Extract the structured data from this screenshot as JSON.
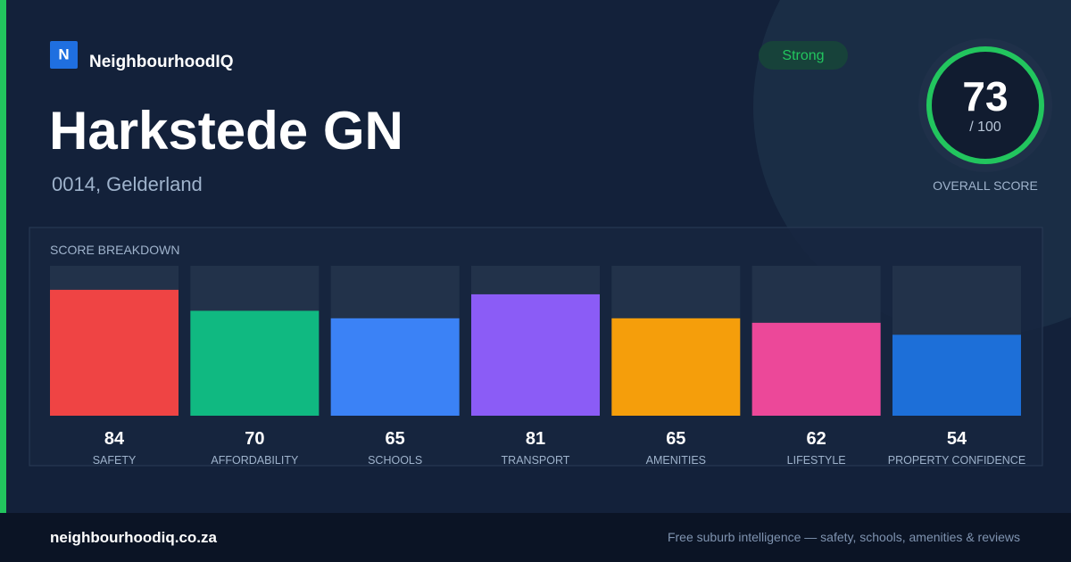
{
  "brand": {
    "logo": "N",
    "name": "NeighbourhoodIQ"
  },
  "title": "Harkstede GN",
  "location": "0014, Gelderland",
  "badge": "Strong",
  "score": {
    "value": 73,
    "out_of": {
      "value": 100,
      "label": "/ 100"
    },
    "label": "OVERALL SCORE"
  },
  "breakdown": {
    "title": "SCORE BREAKDOWN",
    "items": [
      {
        "label": "SAFETY",
        "value": 84,
        "color": "#ef4444"
      },
      {
        "label": "AFFORDABILITY",
        "value": 70,
        "color": "#10b981"
      },
      {
        "label": "SCHOOLS",
        "value": 65,
        "color": "#3b82f6"
      },
      {
        "label": "TRANSPORT",
        "value": 81,
        "color": "#8b5cf6"
      },
      {
        "label": "AMENITIES",
        "value": 65,
        "color": "#f59e0b"
      },
      {
        "label": "LIFESTYLE",
        "value": 62,
        "color": "#ec4899"
      },
      {
        "label": "PROPERTY CONFIDENCE",
        "value": 54,
        "color": "#1d6fd8"
      }
    ]
  },
  "footer": {
    "domain": "neighbourhoodiq.co.za",
    "tagline": "Free suburb intelligence — safety, schools, amenities & reviews"
  }
}
